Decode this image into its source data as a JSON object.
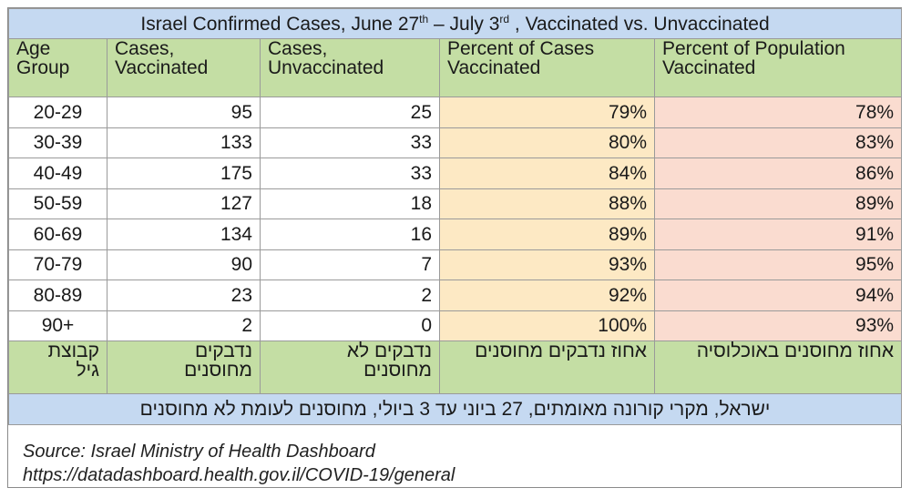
{
  "title": {
    "main": "Israel Confirmed Cases, June 27",
    "sup1": "th",
    "mid": " – July 3",
    "sup2": "rd",
    "tail": " , Vaccinated vs. Unvaccinated"
  },
  "headers": {
    "age_l1": "Age",
    "age_l2": "Group",
    "vac_l1": "Cases,",
    "vac_l2": "Vaccinated",
    "unvac_l1": "Cases,",
    "unvac_l2": "Unvaccinated",
    "pct_cases_l1": "Percent of Cases",
    "pct_cases_l2": "Vaccinated",
    "pct_pop_l1": "Percent of Population",
    "pct_pop_l2": "Vaccinated"
  },
  "rows": [
    {
      "age": "20-29",
      "vac": "95",
      "unvac": "25",
      "pct_cases": "79%",
      "pct_pop": "78%"
    },
    {
      "age": "30-39",
      "vac": "133",
      "unvac": "33",
      "pct_cases": "80%",
      "pct_pop": "83%"
    },
    {
      "age": "40-49",
      "vac": "175",
      "unvac": "33",
      "pct_cases": "84%",
      "pct_pop": "86%"
    },
    {
      "age": "50-59",
      "vac": "127",
      "unvac": "18",
      "pct_cases": "88%",
      "pct_pop": "89%"
    },
    {
      "age": "60-69",
      "vac": "134",
      "unvac": "16",
      "pct_cases": "89%",
      "pct_pop": "91%"
    },
    {
      "age": "70-79",
      "vac": "90",
      "unvac": "7",
      "pct_cases": "93%",
      "pct_pop": "95%"
    },
    {
      "age": "80-89",
      "vac": "23",
      "unvac": "2",
      "pct_cases": "92%",
      "pct_pop": "94%"
    },
    {
      "age": "90+",
      "vac": "2",
      "unvac": "0",
      "pct_cases": "100%",
      "pct_pop": "93%"
    }
  ],
  "hebrew_headers": {
    "age_l1": "קבוצת",
    "age_l2": "גיל",
    "vac_l1": "נדבקים",
    "vac_l2": "מחוסנים",
    "unvac_l1": "נדבקים לא",
    "unvac_l2": "מחוסנים",
    "pct_cases": "אחוז נדבקים מחוסנים",
    "pct_pop": "אחוז מחוסנים באוכלוסיה"
  },
  "hebrew_title": "ישראל, מקרי קורונה מאומתים, 27 ביוני עד 3 ביולי, מחוסנים לעומת לא מחוסנים",
  "source": {
    "line1": "Source: Israel Ministry of Health Dashboard",
    "line2": "https://datadashboard.health.gov.il/COVID-19/general"
  }
}
